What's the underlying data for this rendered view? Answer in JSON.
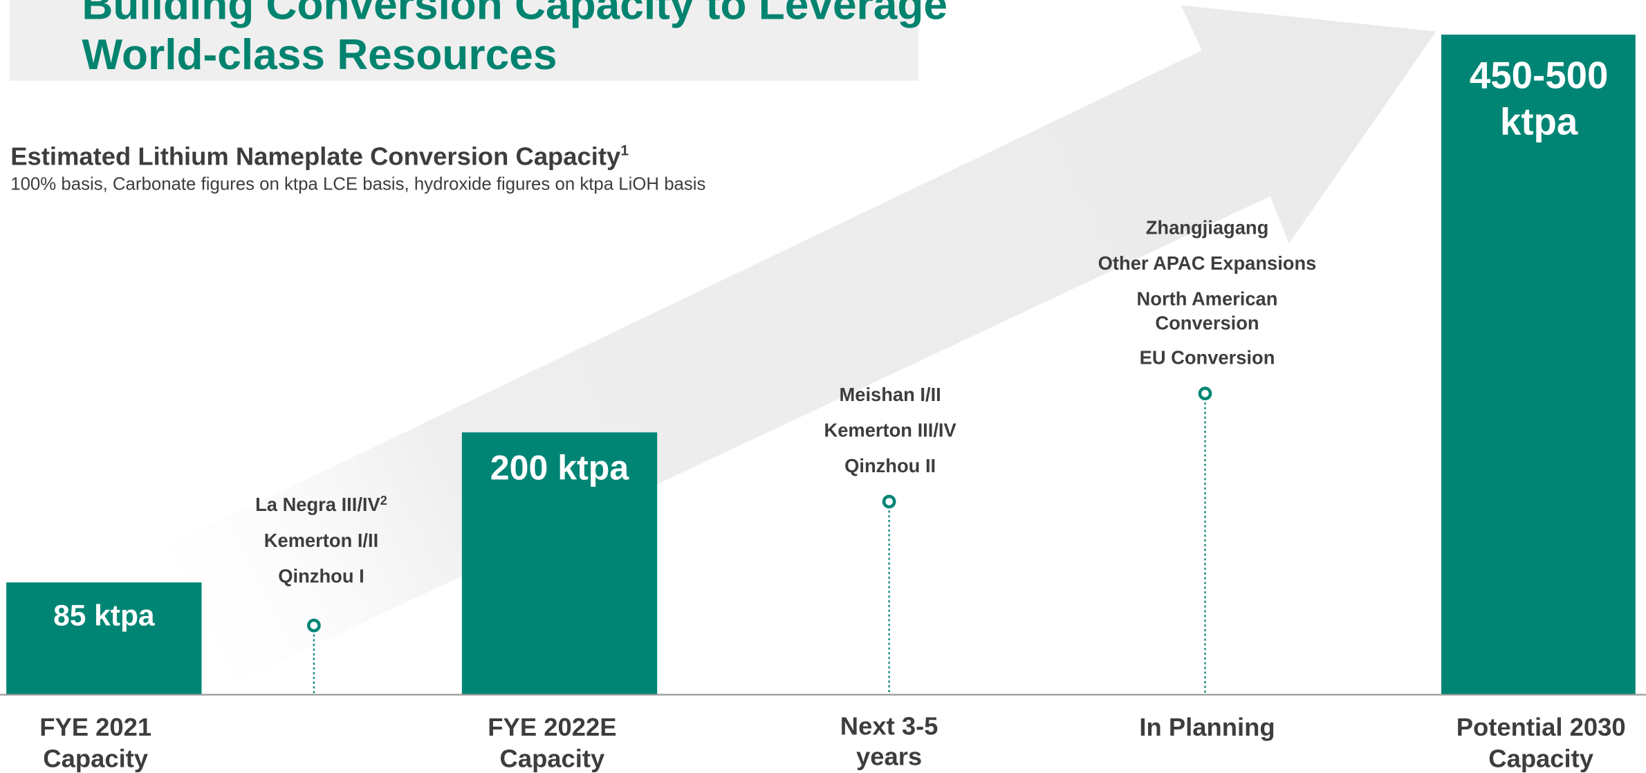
{
  "header": {
    "title": [
      "Building Conversion Capacity to Leverage",
      "World-class Resources"
    ]
  },
  "chart_heading": {
    "title": "Estimated Lithium Nameplate Conversion Capacity",
    "footnote_mark": "1",
    "subtitle": "100% basis, Carbonate figures on ktpa LCE basis, hydroxide figures on ktpa LiOH basis"
  },
  "columns": [
    {
      "label": [
        "FYE 2021",
        "Capacity"
      ],
      "capacity": [
        "85 ktpa"
      ]
    },
    {
      "projects": [
        {
          "lines": [
            "La Negra III/IV"
          ],
          "sup": "2"
        },
        {
          "lines": [
            "Kemerton I/II"
          ]
        },
        {
          "lines": [
            "Qinzhou I"
          ]
        }
      ]
    },
    {
      "label": [
        "FYE 2022E",
        "Capacity"
      ],
      "capacity": [
        "200 ktpa"
      ]
    },
    {
      "label": [
        "Next 3-5",
        "years"
      ],
      "projects": [
        {
          "lines": [
            "Meishan I/II"
          ]
        },
        {
          "lines": [
            "Kemerton III/IV"
          ]
        },
        {
          "lines": [
            "Qinzhou II"
          ]
        }
      ]
    },
    {
      "label": [
        "In Planning"
      ],
      "projects": [
        {
          "lines": [
            "Zhangjiagang"
          ]
        },
        {
          "lines": [
            "Other APAC Expansions"
          ]
        },
        {
          "lines": [
            "North American",
            "Conversion"
          ]
        },
        {
          "lines": [
            "EU Conversion"
          ]
        }
      ]
    },
    {
      "label": [
        "Potential 2030",
        "Capacity"
      ],
      "capacity": [
        "450-500",
        "ktpa"
      ]
    }
  ]
}
